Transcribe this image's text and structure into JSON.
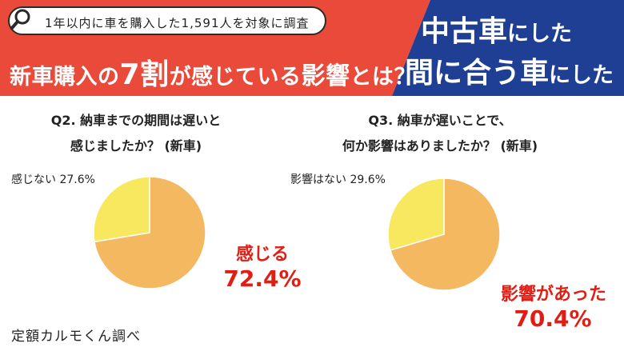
{
  "header": {
    "survey_note": "1年以内に車を購入した1,591人を対象に調査",
    "headline_prefix": "新車購入の",
    "headline_emph": "7割",
    "headline_suffix": "が感じている",
    "headline_emph2": "影響",
    "headline_end": "とは？",
    "right_line1_big": "中古車",
    "right_line1_small": "にした",
    "right_line2_big": "間に合う車",
    "right_line2_small": "にした",
    "colors": {
      "red": "#e94a3a",
      "blue": "#1f3f95"
    }
  },
  "chart_data": [
    {
      "type": "pie",
      "title": "Q2. 納車までの期間は遅いと 感じましたか？ (新車)",
      "title_line1": "Q2. 納車までの期間は遅いと",
      "title_line2": "感じましたか？ (新車)",
      "slices": [
        {
          "label": "感じる",
          "value": 72.4,
          "value_text": "72.4%",
          "color": "#f4b860"
        },
        {
          "label": "感じない",
          "value": 27.6,
          "value_text": "27.6%",
          "color": "#f8e860"
        }
      ]
    },
    {
      "type": "pie",
      "title": "Q3. 納車が遅いことで、 何か影響はありましたか？ (新車)",
      "title_line1": "Q3. 納車が遅いことで、",
      "title_line2": "何か影響はありましたか？ (新車)",
      "slices": [
        {
          "label": "影響があった",
          "value": 70.4,
          "value_text": "70.4%",
          "color": "#f4b860"
        },
        {
          "label": "影響はない",
          "value": 29.6,
          "value_text": "29.6%",
          "color": "#f8e860"
        }
      ]
    }
  ],
  "source": "定額カルモくん調べ"
}
